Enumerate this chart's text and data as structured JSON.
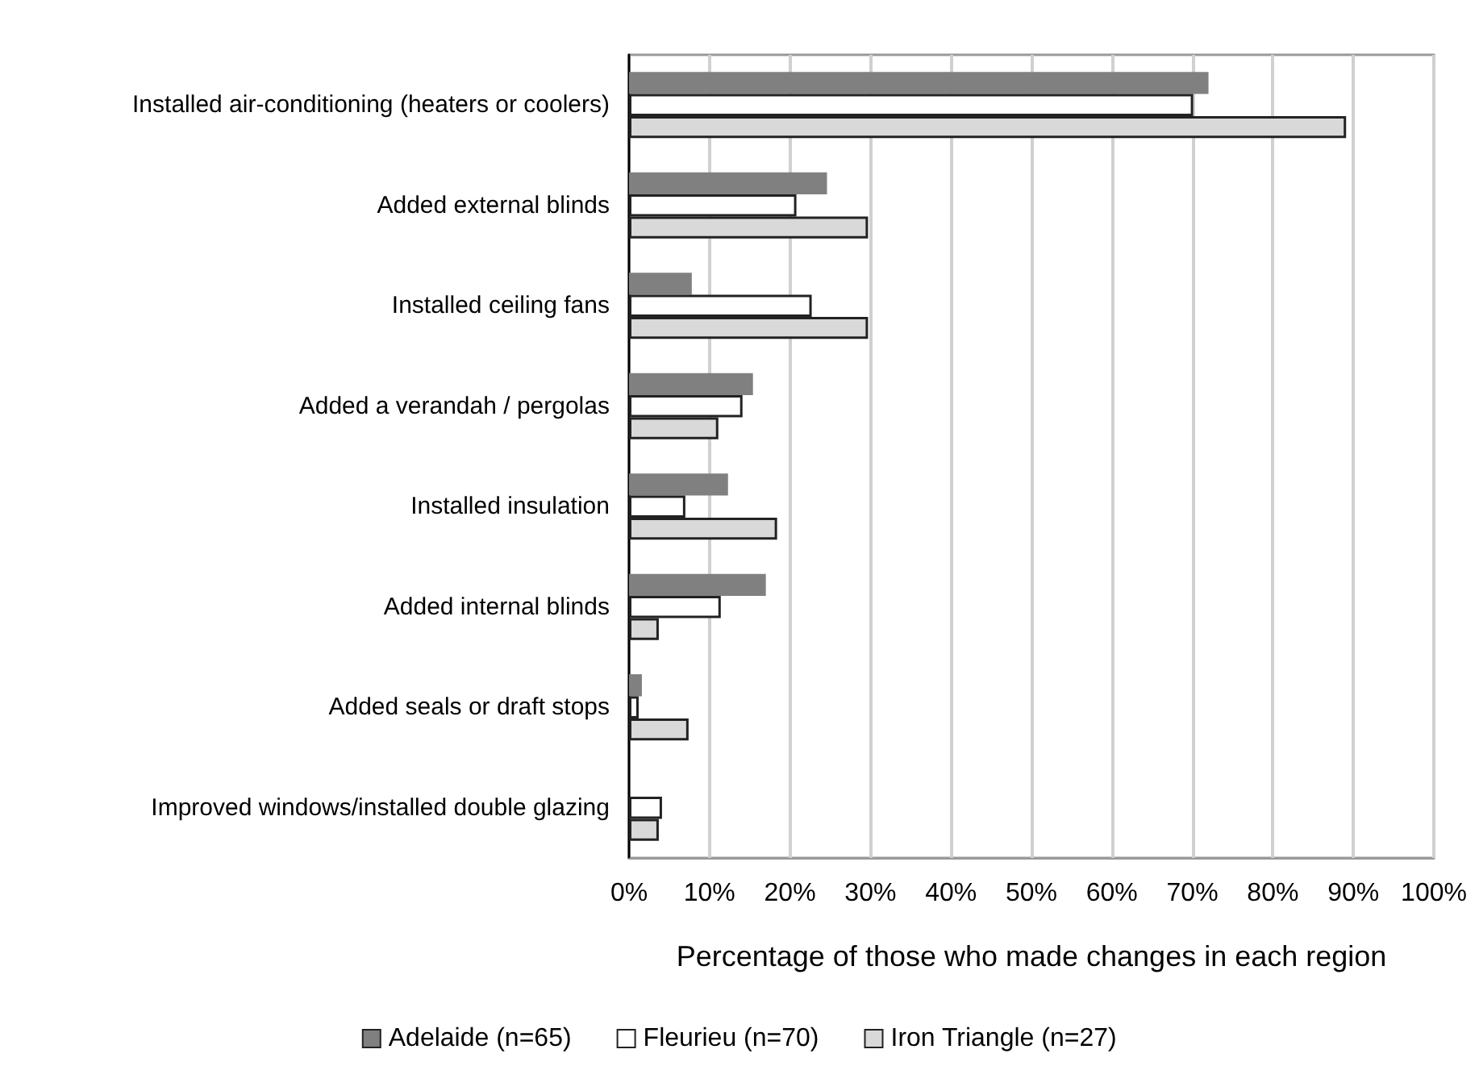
{
  "chart_data": {
    "type": "bar",
    "orientation": "horizontal",
    "xlabel": "Percentage of those who made changes in each region",
    "categories": [
      "Installed air-conditioning (heaters or coolers)",
      "Added external blinds",
      "Installed ceiling fans",
      "Added a verandah / pergolas",
      "Installed insulation",
      "Added internal blinds",
      "Added seals or draft stops",
      "Improved windows/installed double glazing"
    ],
    "series": [
      {
        "name": "Adelaide (n=65)",
        "color": "#808080",
        "values": [
          72.0,
          24.6,
          7.8,
          15.4,
          12.3,
          17.0,
          1.6,
          0
        ]
      },
      {
        "name": "Fleurieu (n=70)",
        "color": "#ffffff",
        "values": [
          70.1,
          20.8,
          22.7,
          14.1,
          7.0,
          11.4,
          1.2,
          4.1
        ]
      },
      {
        "name": "Iron Triangle (n=27)",
        "color": "#d9d9d9",
        "values": [
          89.1,
          29.7,
          29.7,
          11.1,
          18.4,
          3.7,
          7.4,
          3.7
        ]
      }
    ],
    "xlim": [
      0,
      100
    ],
    "xticks": [
      {
        "value": 0,
        "label": "0%"
      },
      {
        "value": 10,
        "label": "10%"
      },
      {
        "value": 20,
        "label": "20%"
      },
      {
        "value": 30,
        "label": "30%"
      },
      {
        "value": 40,
        "label": "40%"
      },
      {
        "value": 50,
        "label": "50%"
      },
      {
        "value": 60,
        "label": "60%"
      },
      {
        "value": 70,
        "label": "70%"
      },
      {
        "value": 80,
        "label": "80%"
      },
      {
        "value": 90,
        "label": "90%"
      },
      {
        "value": 100,
        "label": "100%"
      }
    ],
    "grid": "x",
    "legend": "bottom"
  }
}
